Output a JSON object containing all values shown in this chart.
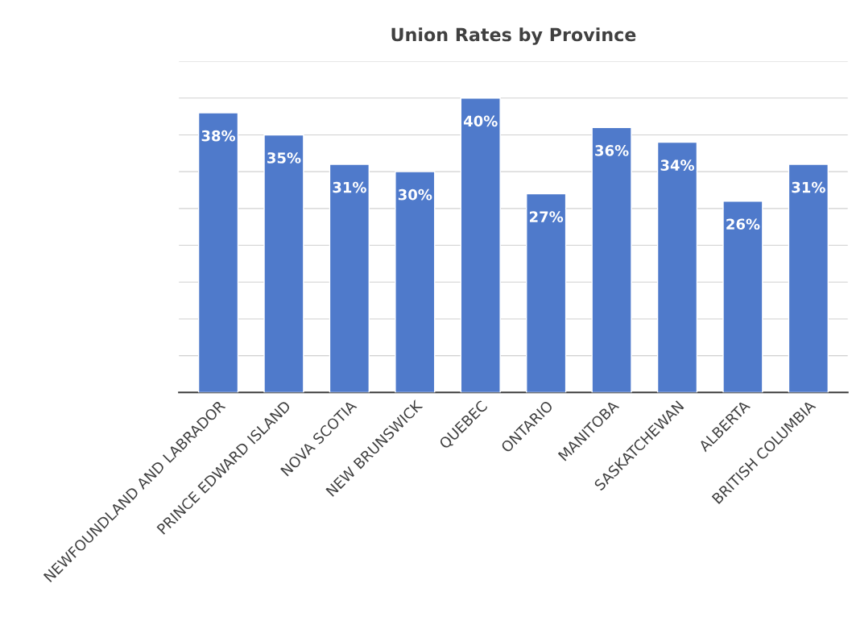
{
  "chart_data": {
    "type": "bar",
    "title": "Union Rates by Province",
    "categories": [
      "NEWFOUNDLAND AND LABRADOR",
      "PRINCE EDWARD ISLAND",
      "NOVA SCOTIA",
      "NEW BRUNSWICK",
      "QUEBEC",
      "ONTARIO",
      "MANITOBA",
      "SASKATCHEWAN",
      "ALBERTA",
      "BRITISH COLUMBIA"
    ],
    "values": [
      38,
      35,
      31,
      30,
      40,
      27,
      36,
      34,
      26,
      31
    ],
    "value_labels": [
      "38%",
      "35%",
      "31%",
      "30%",
      "40%",
      "27%",
      "36%",
      "34%",
      "26%",
      "31%"
    ],
    "color": "#4f7acb",
    "ylim": [
      0,
      45
    ],
    "yticks": [
      {
        "value": 0,
        "label": null
      },
      {
        "value": 5,
        "label": null
      },
      {
        "value": 10,
        "label": null
      },
      {
        "value": 15,
        "label": null
      },
      {
        "value": 20,
        "label": null
      },
      {
        "value": 25,
        "label": null
      },
      {
        "value": 30,
        "label": null
      },
      {
        "value": 35,
        "label": null
      },
      {
        "value": 40,
        "label": null
      },
      {
        "value": 45,
        "label": null
      }
    ],
    "grid": "y",
    "tick_labels": "x",
    "legend": false
  }
}
